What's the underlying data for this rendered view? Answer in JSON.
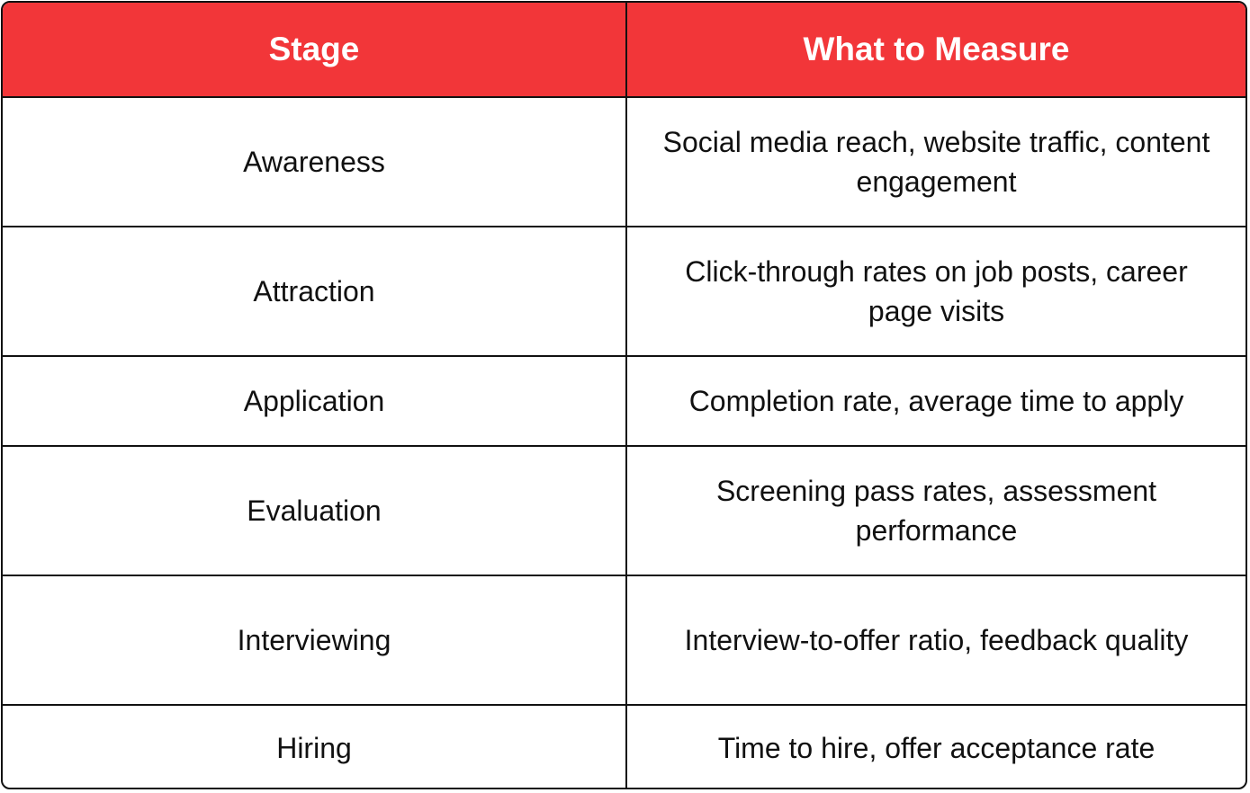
{
  "table": {
    "headers": [
      "Stage",
      "What to Measure"
    ],
    "rows": [
      {
        "stage": "Awareness",
        "measure": "Social media reach, website traffic, content engagement"
      },
      {
        "stage": "Attraction",
        "measure": "Click-through rates on job posts, career page visits"
      },
      {
        "stage": "Application",
        "measure": "Completion rate, average time to apply"
      },
      {
        "stage": "Evaluation",
        "measure": "Screening pass rates, assessment performance"
      },
      {
        "stage": "Interviewing",
        "measure": "Interview-to-offer ratio, feedback quality"
      },
      {
        "stage": "Hiring",
        "measure": "Time to hire, offer acceptance rate"
      }
    ]
  },
  "colors": {
    "header_background": "#f23639",
    "header_text": "#ffffff",
    "border": "#111111",
    "body_text": "#111111"
  }
}
